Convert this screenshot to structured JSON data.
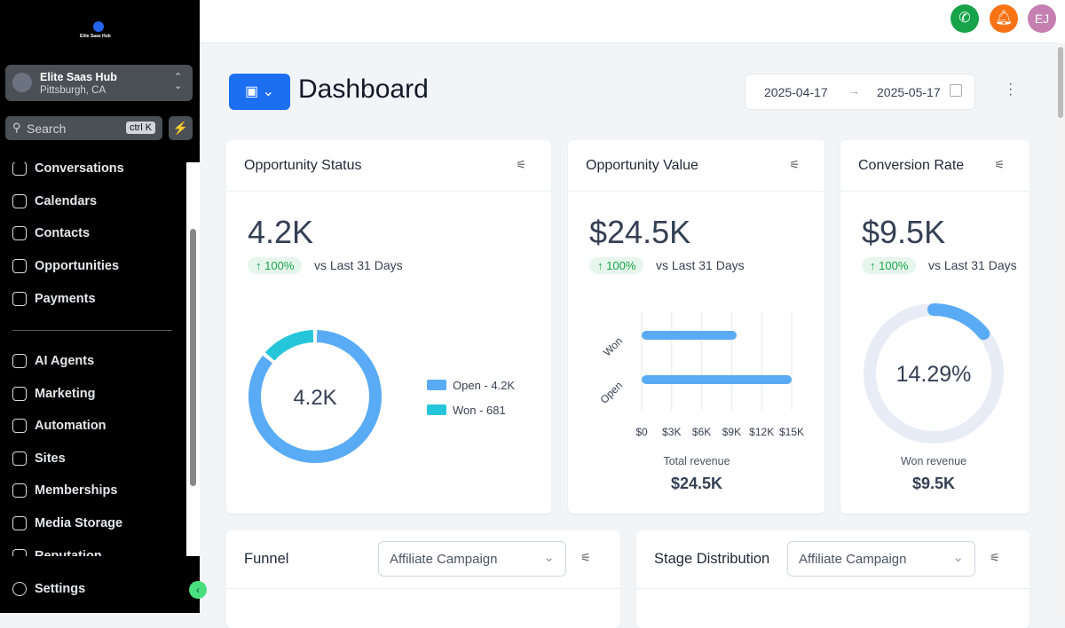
{
  "sidebar": {
    "brand": "Elite Saas Hub",
    "account": {
      "name": "Elite Saas Hub",
      "location": "Pittsburgh, CA"
    },
    "search": {
      "placeholder": "Search",
      "shortcut": "ctrl K"
    },
    "nav_top": [
      "Conversations",
      "Calendars",
      "Contacts",
      "Opportunities",
      "Payments"
    ],
    "nav_bottom": [
      "AI Agents",
      "Marketing",
      "Automation",
      "Sites",
      "Memberships",
      "Media Storage",
      "Reputation"
    ],
    "settings": "Settings"
  },
  "topbar": {
    "avatar": "EJ"
  },
  "header": {
    "title": "Dashboard",
    "date_from": "2025-04-17",
    "date_to": "2025-05-17"
  },
  "cards": [
    {
      "title": "Opportunity Status",
      "value": "4.2K",
      "change": "100%",
      "compare": "vs Last 31 Days",
      "chart": {
        "type": "donut",
        "center_label": "4.2K",
        "categories": [
          "Open",
          "Won"
        ],
        "values": [
          4200,
          681
        ],
        "value_labels": [
          "Open - 4.2K",
          "Won - 681"
        ],
        "colors": [
          "#5aabf5",
          "#26c6da"
        ]
      }
    },
    {
      "title": "Opportunity Value",
      "value": "$24.5K",
      "change": "100%",
      "compare": "vs Last 31 Days",
      "chart": {
        "type": "bar",
        "categories": [
          "Won",
          "Open"
        ],
        "values": [
          9500,
          15000
        ],
        "color": "#5aabf5",
        "xlim": [
          0,
          15000
        ],
        "xticks": [
          {
            "value": 0,
            "label": "$0"
          },
          {
            "value": 3000,
            "label": "$3K"
          },
          {
            "value": 6000,
            "label": "$6K"
          },
          {
            "value": 9000,
            "label": "$9K"
          },
          {
            "value": 12000,
            "label": "$12K"
          },
          {
            "value": 15000,
            "label": "$15K"
          }
        ],
        "footer_label": "Total revenue",
        "footer_value": "$24.5K"
      }
    },
    {
      "title": "Conversion Rate",
      "value": "$9.5K",
      "change": "100%",
      "compare": "vs Last 31 Days",
      "chart": {
        "type": "gauge",
        "value": 14.29,
        "value_label": "14.29%",
        "max": 100,
        "color": "#5aabf5",
        "footer_label": "Won revenue",
        "footer_value": "$9.5K"
      }
    }
  ],
  "bottom_cards": [
    {
      "title": "Funnel",
      "filter": "Affiliate Campaign"
    },
    {
      "title": "Stage Distribution",
      "filter": "Affiliate Campaign"
    }
  ]
}
